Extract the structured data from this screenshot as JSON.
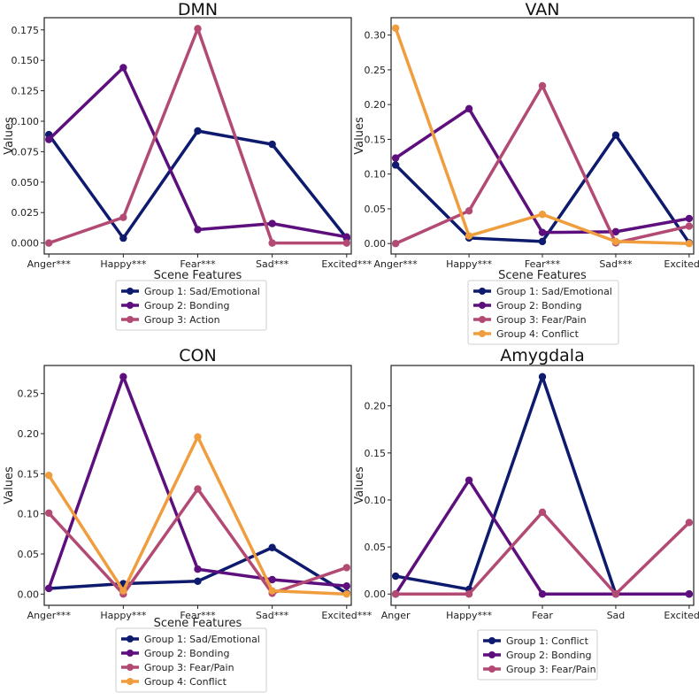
{
  "colors": {
    "navy": "#0d1a6e",
    "purple": "#5c0f7d",
    "mauve": "#b24a74",
    "orange": "#f09d3e"
  },
  "chart_data": [
    {
      "type": "line",
      "title": "DMN",
      "xlabel": "Scene Features",
      "ylabel": "Values",
      "categories": [
        "Anger***",
        "Happy***",
        "Fear***",
        "Sad***",
        "Excited***"
      ],
      "ylim": [
        -0.009,
        0.185
      ],
      "yticks": [
        0.0,
        0.025,
        0.05,
        0.075,
        0.1,
        0.125,
        0.15,
        0.175
      ],
      "ytick_labels": [
        "0.000",
        "0.025",
        "0.050",
        "0.075",
        "0.100",
        "0.125",
        "0.150",
        "0.175"
      ],
      "series": [
        {
          "name": "Group 1: Sad/Emotional",
          "color": "#0d1a6e",
          "values": [
            0.089,
            0.004,
            0.092,
            0.081,
            0.004
          ]
        },
        {
          "name": "Group 2: Bonding",
          "color": "#5c0f7d",
          "values": [
            0.085,
            0.144,
            0.011,
            0.016,
            0.005
          ]
        },
        {
          "name": "Group 3: Action",
          "color": "#b24a74",
          "values": [
            0.0,
            0.021,
            0.176,
            0.0,
            0.0
          ]
        }
      ]
    },
    {
      "type": "line",
      "title": "VAN",
      "xlabel": "Scene Features",
      "ylabel": "Values",
      "categories": [
        "Anger***",
        "Happy***",
        "Fear***",
        "Sad***",
        "Excited***"
      ],
      "ylim": [
        -0.015,
        0.325
      ],
      "yticks": [
        0.0,
        0.05,
        0.1,
        0.15,
        0.2,
        0.25,
        0.3
      ],
      "ytick_labels": [
        "0.00",
        "0.05",
        "0.10",
        "0.15",
        "0.20",
        "0.25",
        "0.30"
      ],
      "series": [
        {
          "name": "Group 1: Sad/Emotional",
          "color": "#0d1a6e",
          "values": [
            0.113,
            0.008,
            0.003,
            0.156,
            0.001
          ]
        },
        {
          "name": "Group 2: Bonding",
          "color": "#5c0f7d",
          "values": [
            0.123,
            0.194,
            0.016,
            0.017,
            0.036
          ]
        },
        {
          "name": "Group 3: Fear/Pain",
          "color": "#b24a74",
          "values": [
            0.0,
            0.047,
            0.227,
            0.001,
            0.025
          ]
        },
        {
          "name": "Group 4: Conflict",
          "color": "#f09d3e",
          "values": [
            0.31,
            0.011,
            0.042,
            0.003,
            0.0
          ]
        }
      ]
    },
    {
      "type": "line",
      "title": "CON",
      "xlabel": "Scene Features",
      "ylabel": "Values",
      "categories": [
        "Anger***",
        "Happy***",
        "Fear***",
        "Sad***",
        "Excited***"
      ],
      "ylim": [
        -0.014,
        0.285
      ],
      "yticks": [
        0.0,
        0.05,
        0.1,
        0.15,
        0.2,
        0.25
      ],
      "ytick_labels": [
        "0.00",
        "0.05",
        "0.10",
        "0.15",
        "0.20",
        "0.25"
      ],
      "series": [
        {
          "name": "Group 1: Sad/Emotional",
          "color": "#0d1a6e",
          "values": [
            0.007,
            0.013,
            0.016,
            0.058,
            0.001
          ]
        },
        {
          "name": "Group 2: Bonding",
          "color": "#5c0f7d",
          "values": [
            0.007,
            0.271,
            0.031,
            0.018,
            0.01
          ]
        },
        {
          "name": "Group 3: Fear/Pain",
          "color": "#b24a74",
          "values": [
            0.101,
            0.0,
            0.131,
            0.001,
            0.033
          ]
        },
        {
          "name": "Group 4: Conflict",
          "color": "#f09d3e",
          "values": [
            0.148,
            0.004,
            0.196,
            0.004,
            0.0
          ]
        }
      ]
    },
    {
      "type": "line",
      "title": "Amygdala",
      "xlabel": "",
      "ylabel": "Values",
      "categories": [
        "Anger",
        "Happy***",
        "Fear",
        "Sad",
        "Excited***"
      ],
      "ylim": [
        -0.012,
        0.243
      ],
      "yticks": [
        0.0,
        0.05,
        0.1,
        0.15,
        0.2
      ],
      "ytick_labels": [
        "0.00",
        "0.05",
        "0.10",
        "0.15",
        "0.20"
      ],
      "series": [
        {
          "name": "Group 1: Conflict",
          "color": "#0d1a6e",
          "values": [
            0.019,
            0.005,
            0.231,
            0.0,
            0.0
          ]
        },
        {
          "name": "Group 2: Bonding",
          "color": "#5c0f7d",
          "values": [
            0.0,
            0.121,
            0.0,
            0.0,
            0.0
          ]
        },
        {
          "name": "Group 3: Fear/Pain",
          "color": "#b24a74",
          "values": [
            0.0,
            0.0,
            0.087,
            0.0,
            0.076
          ]
        }
      ]
    }
  ]
}
